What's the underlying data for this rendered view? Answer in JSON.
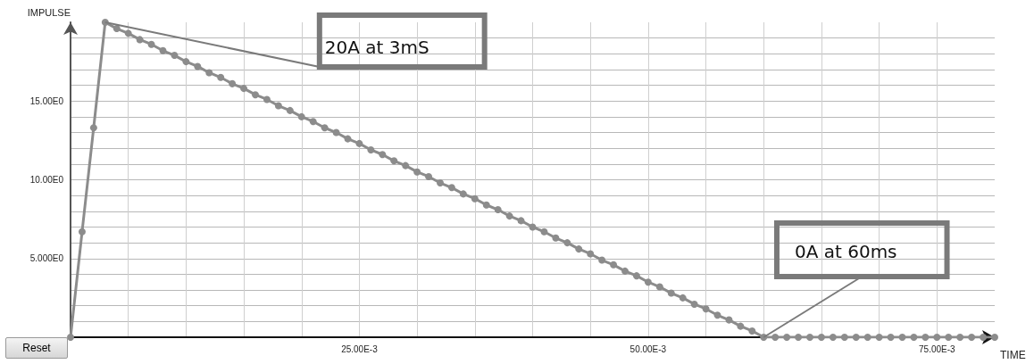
{
  "chart_data": {
    "type": "line",
    "xlabel": "TIME",
    "ylabel": "IMPULSE",
    "x": [
      0,
      0.001,
      0.002,
      0.003,
      0.004,
      0.005,
      0.006,
      0.007,
      0.008,
      0.009,
      0.01,
      0.011,
      0.012,
      0.013,
      0.014,
      0.015,
      0.016,
      0.017,
      0.018,
      0.019,
      0.02,
      0.021,
      0.022,
      0.023,
      0.024,
      0.025,
      0.026,
      0.027,
      0.028,
      0.029,
      0.03,
      0.031,
      0.032,
      0.033,
      0.034,
      0.035,
      0.036,
      0.037,
      0.038,
      0.039,
      0.04,
      0.041,
      0.042,
      0.043,
      0.044,
      0.045,
      0.046,
      0.047,
      0.048,
      0.049,
      0.05,
      0.051,
      0.052,
      0.053,
      0.054,
      0.055,
      0.056,
      0.057,
      0.058,
      0.059,
      0.06,
      0.061,
      0.062,
      0.063,
      0.064,
      0.065,
      0.066,
      0.067,
      0.068,
      0.069,
      0.07,
      0.071,
      0.072,
      0.073,
      0.074,
      0.075,
      0.076,
      0.077,
      0.078,
      0.079,
      0.08
    ],
    "series": [
      {
        "color": "#8c8c8c",
        "values": [
          0,
          6.7,
          13.3,
          20,
          19.6,
          19.3,
          18.9,
          18.6,
          18.2,
          17.9,
          17.5,
          17.2,
          16.8,
          16.5,
          16.1,
          15.8,
          15.4,
          15.1,
          14.7,
          14.4,
          14.0,
          13.7,
          13.3,
          13.0,
          12.6,
          12.3,
          11.9,
          11.6,
          11.2,
          10.9,
          10.5,
          10.2,
          9.8,
          9.5,
          9.1,
          8.8,
          8.4,
          8.1,
          7.7,
          7.4,
          7.0,
          6.7,
          6.3,
          6.0,
          5.6,
          5.3,
          4.9,
          4.6,
          4.2,
          3.9,
          3.5,
          3.2,
          2.8,
          2.5,
          2.1,
          1.8,
          1.4,
          1.1,
          0.7,
          0.4,
          0,
          0,
          0,
          0,
          0,
          0,
          0,
          0,
          0,
          0,
          0,
          0,
          0,
          0,
          0,
          0,
          0,
          0,
          0,
          0,
          0
        ]
      }
    ],
    "xlim": [
      0,
      0.08
    ],
    "xticks": [
      {
        "value": 0,
        "label": null
      },
      {
        "value": 0.005,
        "label": null
      },
      {
        "value": 0.01,
        "label": null
      },
      {
        "value": 0.015,
        "label": null
      },
      {
        "value": 0.02,
        "label": null
      },
      {
        "value": 0.025,
        "label": "25.00E-3"
      },
      {
        "value": 0.03,
        "label": null
      },
      {
        "value": 0.035,
        "label": null
      },
      {
        "value": 0.04,
        "label": null
      },
      {
        "value": 0.045,
        "label": null
      },
      {
        "value": 0.05,
        "label": "50.00E-3"
      },
      {
        "value": 0.055,
        "label": null
      },
      {
        "value": 0.06,
        "label": null
      },
      {
        "value": 0.065,
        "label": null
      },
      {
        "value": 0.07,
        "label": null
      },
      {
        "value": 0.075,
        "label": "75.00E-3"
      }
    ],
    "ylim": [
      0,
      20
    ],
    "yticks": [
      {
        "value": 0,
        "label": null
      },
      {
        "value": 1,
        "label": null
      },
      {
        "value": 2,
        "label": null
      },
      {
        "value": 3,
        "label": null
      },
      {
        "value": 4,
        "label": null
      },
      {
        "value": 5,
        "label": "5.000E0"
      },
      {
        "value": 6,
        "label": null
      },
      {
        "value": 7,
        "label": null
      },
      {
        "value": 8,
        "label": null
      },
      {
        "value": 9,
        "label": null
      },
      {
        "value": 10,
        "label": "10.00E0"
      },
      {
        "value": 11,
        "label": null
      },
      {
        "value": 12,
        "label": null
      },
      {
        "value": 13,
        "label": null
      },
      {
        "value": 14,
        "label": null
      },
      {
        "value": 15,
        "label": "15.00E0"
      },
      {
        "value": 16,
        "label": null
      },
      {
        "value": 17,
        "label": null
      },
      {
        "value": 18,
        "label": null
      },
      {
        "value": 19,
        "label": null
      }
    ],
    "grid": true,
    "marker": "circle",
    "line_style": "solid",
    "annotations": [
      {
        "text": "20A at 3mS",
        "x": 0.003,
        "y": 20
      },
      {
        "text": "0A at 60ms",
        "x": 0.06,
        "y": 0
      },
      "Reset"
    ]
  }
}
